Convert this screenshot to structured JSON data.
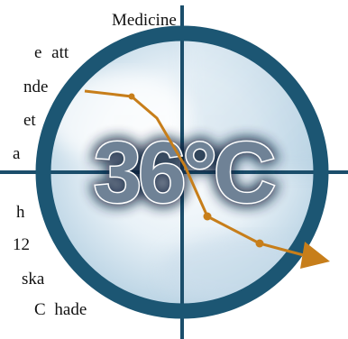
{
  "text_lines": [
    "Medicine",
    "e  att",
    "nde",
    "et",
    "a",
    "h",
    "12",
    "ska",
    "C  hade"
  ],
  "badge": {
    "temperature_label": "36°C"
  },
  "colors": {
    "ring": "#1c5673",
    "crosshair": "#1b4e6b",
    "trend_line": "#c77e1a",
    "label_fill": "#6f8296",
    "label_shadow": "#08243c"
  },
  "icons": {
    "badge": "thermometer-target-icon",
    "arrow": "downward-trend-arrow-icon"
  }
}
